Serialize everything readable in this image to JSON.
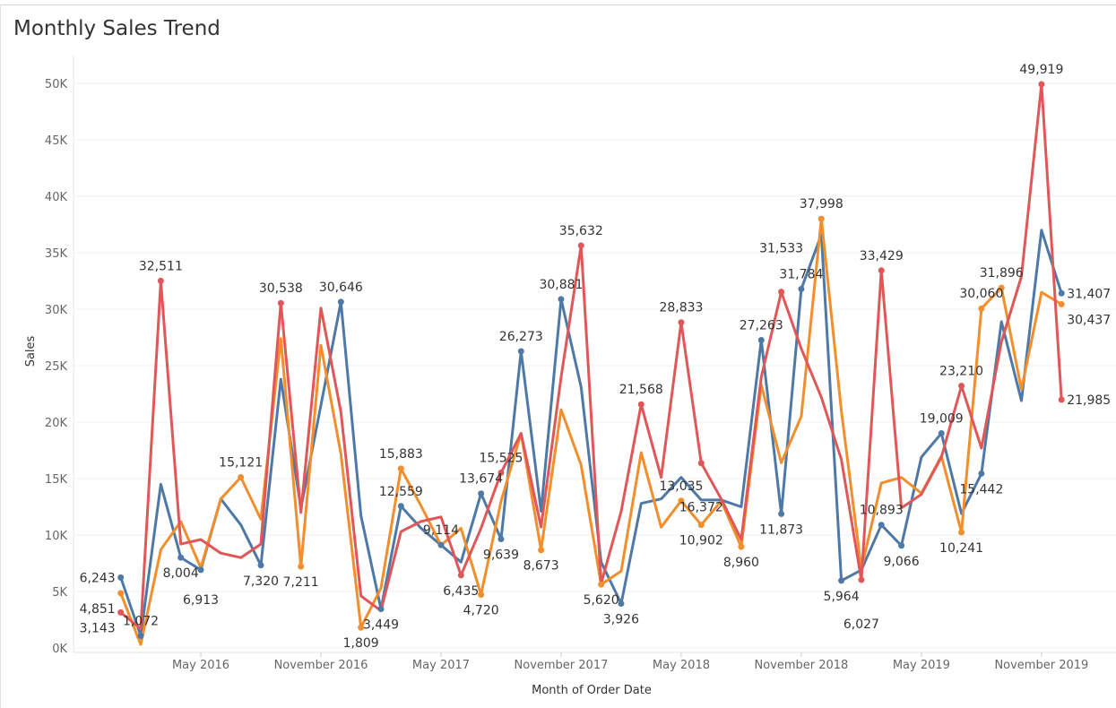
{
  "chart_data": {
    "type": "line",
    "title": "Monthly Sales Trend",
    "xlabel": "Month of Order Date",
    "ylabel": "Sales",
    "ylim": [
      0,
      52000
    ],
    "yticks": [
      0,
      5000,
      10000,
      15000,
      20000,
      25000,
      30000,
      35000,
      40000,
      45000,
      50000
    ],
    "ytick_labels": [
      "0K",
      "5K",
      "10K",
      "15K",
      "20K",
      "25K",
      "30K",
      "35K",
      "40K",
      "45K",
      "50K"
    ],
    "xtick_labels": [
      {
        "month": "2016-05",
        "label": "May 2016"
      },
      {
        "month": "2016-11",
        "label": "November 2016"
      },
      {
        "month": "2017-05",
        "label": "May 2017"
      },
      {
        "month": "2017-11",
        "label": "November 2017"
      },
      {
        "month": "2018-05",
        "label": "May 2018"
      },
      {
        "month": "2018-11",
        "label": "November 2018"
      },
      {
        "month": "2019-05",
        "label": "May 2019"
      },
      {
        "month": "2019-11",
        "label": "November 2019"
      }
    ],
    "grid": true,
    "legend": "none",
    "x": [
      "2016-01",
      "2016-02",
      "2016-03",
      "2016-04",
      "2016-05",
      "2016-06",
      "2016-07",
      "2016-08",
      "2016-09",
      "2016-10",
      "2016-11",
      "2016-12",
      "2017-01",
      "2017-02",
      "2017-03",
      "2017-04",
      "2017-05",
      "2017-06",
      "2017-07",
      "2017-08",
      "2017-09",
      "2017-10",
      "2017-11",
      "2017-12",
      "2018-01",
      "2018-02",
      "2018-03",
      "2018-04",
      "2018-05",
      "2018-06",
      "2018-07",
      "2018-08",
      "2018-09",
      "2018-10",
      "2018-11",
      "2018-12",
      "2019-01",
      "2019-02",
      "2019-03",
      "2019-04",
      "2019-05",
      "2019-06",
      "2019-07",
      "2019-08",
      "2019-09",
      "2019-10",
      "2019-11",
      "2019-12"
    ],
    "series": [
      {
        "color": "#4e79a7",
        "values": [
          6243,
          1072,
          14500,
          8004,
          6913,
          13200,
          10900,
          7320,
          23800,
          12400,
          21500,
          30646,
          11700,
          3449,
          12559,
          10600,
          9114,
          7600,
          13674,
          9639,
          26273,
          12100,
          30881,
          23100,
          7600,
          3926,
          12800,
          13200,
          15100,
          13100,
          13100,
          12500,
          27263,
          11873,
          31784,
          36600,
          5964,
          6900,
          10893,
          9066,
          16900,
          19009,
          11900,
          15442,
          28900,
          21900,
          37000,
          31407
        ],
        "labeled": [
          0,
          1,
          3,
          4,
          7,
          11,
          13,
          14,
          16,
          18,
          19,
          20,
          22,
          25,
          32,
          33,
          34,
          36,
          38,
          39,
          41,
          43,
          47
        ]
      },
      {
        "color": "#f28e2b",
        "values": [
          4851,
          300,
          8700,
          11200,
          7100,
          13200,
          15121,
          11400,
          27400,
          7211,
          26800,
          17200,
          1809,
          5300,
          15883,
          12600,
          9100,
          10600,
          4720,
          13000,
          19000,
          8673,
          21100,
          16200,
          5620,
          6800,
          17300,
          10700,
          13035,
          10902,
          13000,
          8960,
          23300,
          16400,
          20500,
          37998,
          21000,
          7000,
          14600,
          15100,
          13700,
          17000,
          10241,
          30060,
          31896,
          22900,
          31500,
          30437
        ],
        "labeled": [
          0,
          6,
          9,
          12,
          14,
          18,
          21,
          24,
          28,
          29,
          31,
          35,
          42,
          43,
          44,
          47
        ]
      },
      {
        "color": "#e15759",
        "values": [
          3143,
          1700,
          32511,
          9200,
          9600,
          8400,
          8000,
          9200,
          30538,
          12000,
          30100,
          20900,
          4600,
          3300,
          10300,
          11200,
          11600,
          6435,
          10600,
          15525,
          19000,
          10700,
          24000,
          35632,
          5700,
          12100,
          21568,
          15100,
          28833,
          16372,
          13200,
          9600,
          24000,
          31533,
          26500,
          22200,
          16700,
          6027,
          33429,
          12400,
          13600,
          16900,
          23210,
          17700,
          27100,
          32900,
          49919,
          21985
        ],
        "labeled": [
          0,
          2,
          8,
          17,
          19,
          23,
          26,
          28,
          29,
          33,
          37,
          38,
          42,
          46,
          47
        ]
      }
    ]
  }
}
